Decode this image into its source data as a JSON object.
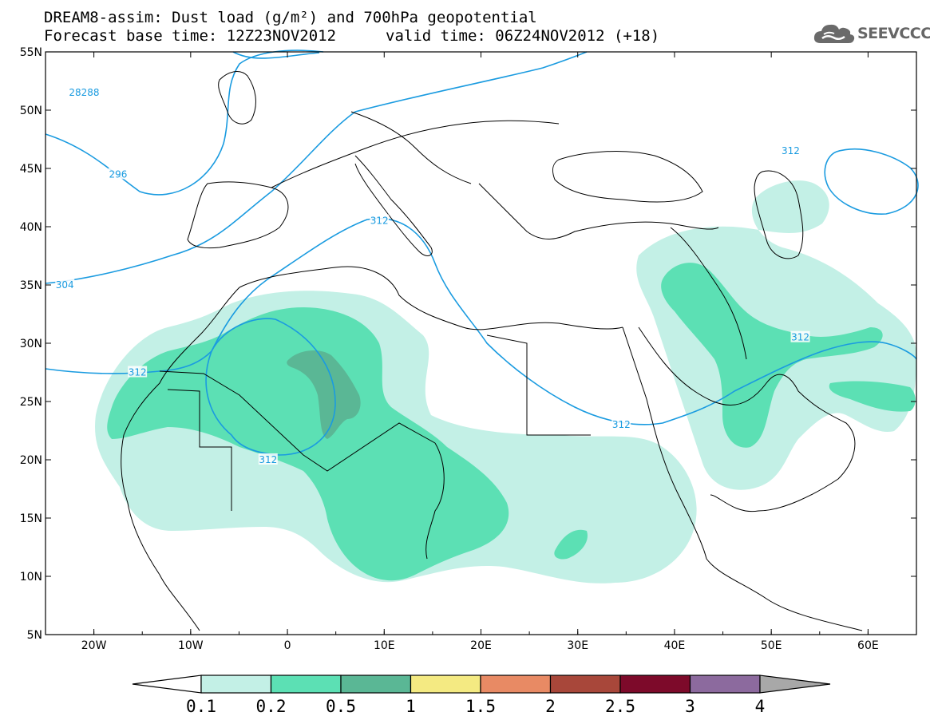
{
  "title": {
    "line1": "DREAM8-assim: Dust load (g/m²) and 700hPa geopotential",
    "line2_left": "Forecast base time: 12Z23NOV2012",
    "line2_right": "valid time: 06Z24NOV2012 (+18)"
  },
  "logo": {
    "text": "SEEVCCC",
    "icon": "cloud-logo-icon"
  },
  "map": {
    "lat_labels": [
      "55N",
      "50N",
      "45N",
      "40N",
      "35N",
      "30N",
      "25N",
      "20N",
      "15N",
      "10N",
      "5N"
    ],
    "lon_labels": [
      "20W",
      "10W",
      "0",
      "10E",
      "20E",
      "30E",
      "40E",
      "50E",
      "60E"
    ],
    "lat_range": [
      5,
      55
    ],
    "lon_range": [
      -25,
      65
    ],
    "contour_labels": [
      {
        "text": "28288",
        "lon": -21,
        "lat": 51.5
      },
      {
        "text": "296",
        "lon": -17.5,
        "lat": 44.5
      },
      {
        "text": "304",
        "lon": -23,
        "lat": 35
      },
      {
        "text": "312",
        "lon": -15.5,
        "lat": 27.5
      },
      {
        "text": "312",
        "lon": 9.5,
        "lat": 40.5
      },
      {
        "text": "312",
        "lon": -2,
        "lat": 20
      },
      {
        "text": "312",
        "lon": 34.5,
        "lat": 23
      },
      {
        "text": "312",
        "lon": 53,
        "lat": 30.5
      },
      {
        "text": "312",
        "lon": 52,
        "lat": 46.5
      }
    ],
    "contour_color": "#1a9be0"
  },
  "colorbar": {
    "labels": [
      "0.1",
      "0.2",
      "0.5",
      "1",
      "1.5",
      "2",
      "2.5",
      "3",
      "4"
    ],
    "colors": [
      "#c3f0e6",
      "#5ce0b4",
      "#5ab795",
      "#f4ea82",
      "#e88a64",
      "#a8473a",
      "#7d0a2a",
      "#8c6a9e"
    ],
    "low_color": "#ffffff",
    "high_color": "#a8a8a8"
  },
  "legend_colors": {
    "dust_0_1": "#c3f0e6",
    "dust_0_2": "#5ce0b4",
    "dust_0_5": "#5ab795"
  }
}
